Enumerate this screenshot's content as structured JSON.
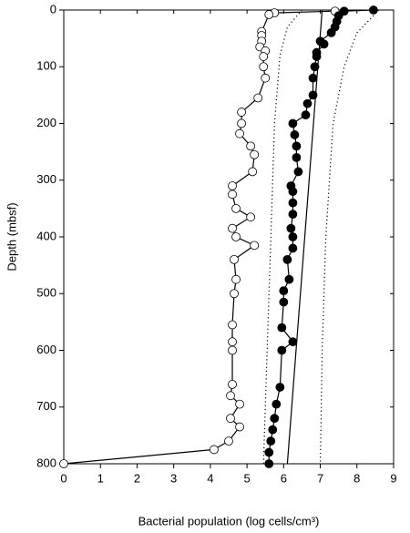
{
  "chart_data": {
    "type": "line",
    "xlabel": "Bacterial population (log cells/cm³)",
    "ylabel": "Depth (mbsf)",
    "xlim": [
      0,
      9
    ],
    "xticks": [
      0,
      1,
      2,
      3,
      4,
      5,
      6,
      7,
      8,
      9
    ],
    "ylim": [
      800,
      0
    ],
    "yticks": [
      0,
      100,
      200,
      300,
      400,
      500,
      600,
      700,
      800
    ],
    "series": [
      {
        "marker": "open",
        "line": "solid",
        "color": "#000000",
        "x": [
          7.4,
          5.75,
          5.6,
          5.4,
          5.4,
          5.4,
          5.35,
          5.5,
          5.45,
          5.45,
          5.5,
          5.3,
          4.85,
          4.85,
          4.8,
          5.1,
          5.2,
          5.15,
          4.6,
          4.6,
          4.7,
          5.1,
          4.6,
          4.7,
          5.2,
          4.65,
          4.7,
          4.65,
          4.6,
          4.6,
          4.6,
          4.6,
          4.55,
          4.8,
          4.55,
          4.8,
          4.5,
          4.1,
          0
        ],
        "y": [
          2,
          5,
          8,
          38,
          45,
          55,
          65,
          72,
          82,
          100,
          120,
          155,
          180,
          200,
          218,
          240,
          255,
          285,
          310,
          325,
          350,
          365,
          385,
          400,
          415,
          440,
          475,
          500,
          555,
          585,
          600,
          660,
          680,
          695,
          720,
          735,
          760,
          775,
          800
        ]
      },
      {
        "marker": "filled",
        "line": "solid",
        "color": "#000000",
        "x": [
          8.45,
          7.65,
          7.5,
          7.45,
          7.4,
          7.3,
          7.0,
          7.1,
          6.9,
          6.9,
          6.85,
          6.8,
          6.8,
          6.65,
          6.6,
          6.25,
          6.3,
          6.35,
          6.35,
          6.4,
          6.2,
          6.25,
          6.25,
          6.25,
          6.2,
          6.25,
          6.25,
          6.1,
          6.15,
          6.0,
          6.0,
          5.95,
          6.25,
          5.95,
          5.9,
          5.8,
          5.75,
          5.7,
          5.65,
          5.6,
          5.6
        ],
        "y": [
          0,
          2,
          10,
          20,
          30,
          40,
          55,
          60,
          75,
          82,
          100,
          120,
          150,
          165,
          185,
          200,
          220,
          240,
          260,
          285,
          310,
          320,
          340,
          360,
          385,
          400,
          420,
          440,
          475,
          495,
          515,
          560,
          585,
          600,
          665,
          695,
          720,
          740,
          760,
          780,
          800
        ]
      },
      {
        "marker": "none",
        "line": "solid",
        "color": "#000000",
        "x": [
          7.05,
          6.1
        ],
        "y": [
          0,
          800
        ]
      },
      {
        "marker": "none",
        "line": "dotted",
        "color": "#000000",
        "x": [
          6.5,
          6.1,
          5.9,
          5.75,
          5.65,
          5.55,
          5.45
        ],
        "y": [
          0,
          30,
          80,
          200,
          400,
          600,
          800
        ]
      },
      {
        "marker": "none",
        "line": "dotted",
        "color": "#000000",
        "x": [
          8.6,
          8.0,
          7.65,
          7.35,
          7.15,
          7.05,
          7.0
        ],
        "y": [
          0,
          40,
          100,
          200,
          400,
          600,
          800
        ]
      }
    ]
  }
}
